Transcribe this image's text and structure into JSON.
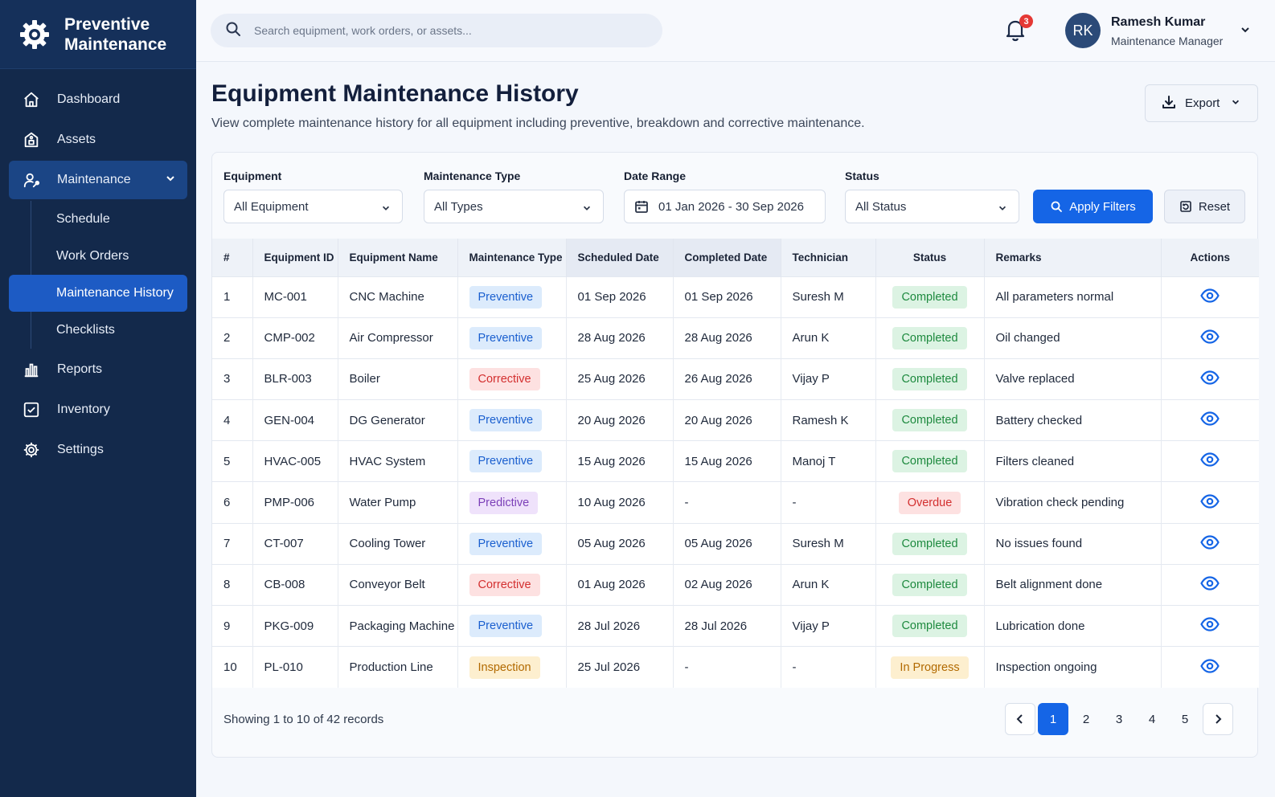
{
  "app": {
    "title": "Preventive Maintenance",
    "colors": {
      "sidebar": "#13294b",
      "accent": "#1565e6",
      "completed": "#1e8a3f",
      "overdue": "#d32f2f",
      "in_progress": "#b26a00"
    }
  },
  "sidebar": {
    "items": [
      {
        "label": "Dashboard",
        "icon": "home-icon"
      },
      {
        "label": "Assets",
        "icon": "assets-icon"
      },
      {
        "label": "Maintenance",
        "icon": "maintenance-icon",
        "expanded": true,
        "children": [
          {
            "label": "Schedule"
          },
          {
            "label": "Work Orders"
          },
          {
            "label": "Maintenance History",
            "active": true
          },
          {
            "label": "Checklists"
          }
        ]
      },
      {
        "label": "Reports",
        "icon": "reports-icon"
      },
      {
        "label": "Inventory",
        "icon": "inventory-icon"
      },
      {
        "label": "Settings",
        "icon": "settings-icon"
      }
    ]
  },
  "header": {
    "search_placeholder": "Search equipment, work orders, or assets...",
    "notification_count": "3",
    "user": {
      "initials": "RK",
      "name": "Ramesh Kumar",
      "role": "Maintenance Manager"
    }
  },
  "page": {
    "title": "Equipment Maintenance History",
    "subtitle": "View complete maintenance history for all equipment including preventive, breakdown and corrective maintenance.",
    "export_label": "Export"
  },
  "filters": {
    "equipment": {
      "label": "Equipment",
      "value": "All Equipment"
    },
    "type": {
      "label": "Maintenance Type",
      "value": "All Types"
    },
    "date": {
      "label": "Date Range",
      "value": "01 Jan 2026 - 30 Sep 2026"
    },
    "status": {
      "label": "Status",
      "value": "All Status"
    },
    "apply_label": "Apply Filters",
    "reset_label": "Reset"
  },
  "table": {
    "columns": [
      "#",
      "Equipment ID",
      "Equipment Name",
      "Maintenance Type",
      "Scheduled Date",
      "Completed Date",
      "Technician",
      "Status",
      "Remarks",
      "Actions"
    ],
    "rows": [
      {
        "n": "1",
        "id": "MC-001",
        "name": "CNC Machine",
        "type": "Preventive",
        "scheduled": "01 Sep 2026",
        "completed": "01 Sep 2026",
        "tech": "Suresh M",
        "status": "Completed",
        "remarks": "All parameters normal"
      },
      {
        "n": "2",
        "id": "CMP-002",
        "name": "Air Compressor",
        "type": "Preventive",
        "scheduled": "28 Aug 2026",
        "completed": "28 Aug 2026",
        "tech": "Arun K",
        "status": "Completed",
        "remarks": "Oil changed"
      },
      {
        "n": "3",
        "id": "BLR-003",
        "name": "Boiler",
        "type": "Corrective",
        "scheduled": "25 Aug 2026",
        "completed": "26 Aug 2026",
        "tech": "Vijay P",
        "status": "Completed",
        "remarks": "Valve replaced"
      },
      {
        "n": "4",
        "id": "GEN-004",
        "name": "DG Generator",
        "type": "Preventive",
        "scheduled": "20 Aug 2026",
        "completed": "20 Aug 2026",
        "tech": "Ramesh K",
        "status": "Completed",
        "remarks": "Battery checked"
      },
      {
        "n": "5",
        "id": "HVAC-005",
        "name": "HVAC System",
        "type": "Preventive",
        "scheduled": "15 Aug 2026",
        "completed": "15 Aug 2026",
        "tech": "Manoj T",
        "status": "Completed",
        "remarks": "Filters cleaned"
      },
      {
        "n": "6",
        "id": "PMP-006",
        "name": "Water Pump",
        "type": "Predictive",
        "scheduled": "10 Aug 2026",
        "completed": "-",
        "tech": "-",
        "status": "Overdue",
        "remarks": "Vibration check pending"
      },
      {
        "n": "7",
        "id": "CT-007",
        "name": "Cooling Tower",
        "type": "Preventive",
        "scheduled": "05 Aug 2026",
        "completed": "05 Aug 2026",
        "tech": "Suresh M",
        "status": "Completed",
        "remarks": "No issues found"
      },
      {
        "n": "8",
        "id": "CB-008",
        "name": "Conveyor Belt",
        "type": "Corrective",
        "scheduled": "01 Aug 2026",
        "completed": "02 Aug 2026",
        "tech": "Arun K",
        "status": "Completed",
        "remarks": "Belt alignment done"
      },
      {
        "n": "9",
        "id": "PKG-009",
        "name": "Packaging Machine",
        "type": "Preventive",
        "scheduled": "28 Jul 2026",
        "completed": "28 Jul 2026",
        "tech": "Vijay P",
        "status": "Completed",
        "remarks": "Lubrication done"
      },
      {
        "n": "10",
        "id": "PL-010",
        "name": "Production Line",
        "type": "Inspection",
        "scheduled": "25 Jul 2026",
        "completed": "-",
        "tech": "-",
        "status": "In Progress",
        "remarks": "Inspection ongoing"
      }
    ]
  },
  "footer": {
    "summary": "Showing 1 to 10 of 42 records",
    "pages": [
      "1",
      "2",
      "3",
      "4",
      "5"
    ],
    "current_page": "1"
  }
}
